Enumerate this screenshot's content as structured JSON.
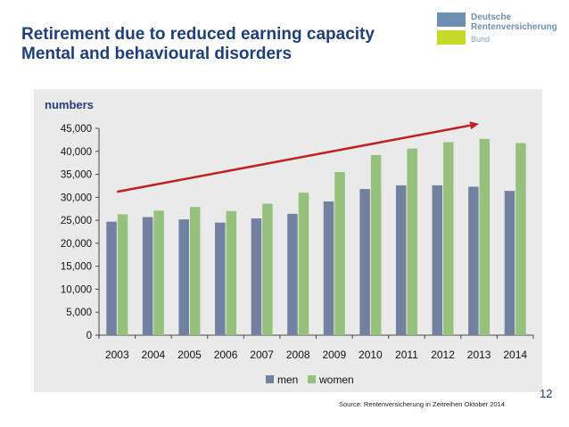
{
  "header": {
    "title_line1": "Retirement due to reduced earning capacity",
    "title_line2": "Mental and behavioural disorders"
  },
  "logo": {
    "line1": "Deutsche",
    "line2": "Rentenversicherung",
    "sub": "Bund",
    "colors": {
      "blue": "#6e8fb4",
      "green": "#c7d92b"
    }
  },
  "footer": {
    "source": "Source: Rentenversicherung in Zeitreihen Oktober 2014",
    "page_number": "12"
  },
  "chart_data": {
    "type": "bar",
    "ylabel": "numbers",
    "categories": [
      "2003",
      "2004",
      "2005",
      "2006",
      "2007",
      "2008",
      "2009",
      "2010",
      "2011",
      "2012",
      "2013",
      "2014"
    ],
    "series": [
      {
        "name": "men",
        "color": "#71819f",
        "values": [
          24700,
          25700,
          25200,
          24500,
          25400,
          26400,
          29100,
          31800,
          32600,
          32600,
          32300,
          31400
        ]
      },
      {
        "name": "women",
        "color": "#95c17d",
        "values": [
          26300,
          27100,
          27900,
          27000,
          28600,
          31000,
          35500,
          39200,
          40600,
          42000,
          42700,
          41800
        ]
      }
    ],
    "ylim": [
      0,
      45000
    ],
    "yticks": [
      0,
      5000,
      10000,
      15000,
      20000,
      25000,
      30000,
      35000,
      40000,
      45000
    ],
    "ytick_labels": [
      "0",
      "5,000",
      "10,000",
      "15,000",
      "20,000",
      "25,000",
      "30,000",
      "35,000",
      "40,000",
      "45,000"
    ],
    "grid": false,
    "legend": "bottom-center",
    "trend_arrow": {
      "color": "#c0201f",
      "from": {
        "x": "2003",
        "y": 31200
      },
      "to": {
        "x": "2013",
        "y": 46000
      }
    }
  }
}
